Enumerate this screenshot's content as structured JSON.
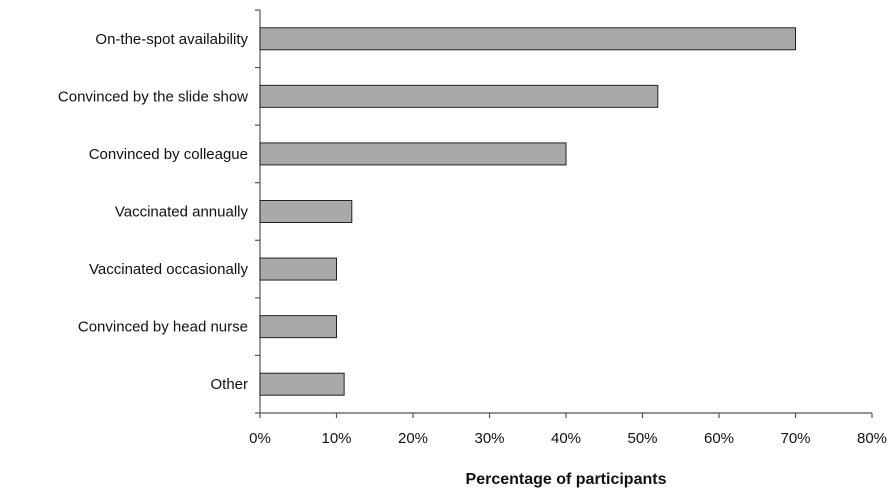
{
  "chart_data": {
    "type": "bar",
    "orientation": "horizontal",
    "categories": [
      "On-the-spot availability",
      "Convinced by the slide show",
      "Convinced by colleague",
      "Vaccinated annually",
      "Vaccinated occasionally",
      "Convinced by head nurse",
      "Other"
    ],
    "values": [
      70,
      52,
      40,
      12,
      10,
      10,
      11
    ],
    "value_unit": "%",
    "xlabel": "Percentage of participants",
    "ylabel": "",
    "xlim": [
      0,
      80
    ],
    "x_ticks": [
      "0%",
      "10%",
      "20%",
      "30%",
      "40%",
      "50%",
      "60%",
      "70%",
      "80%"
    ],
    "grid": false,
    "legend": "none",
    "bar_color": "#a9a9a9"
  }
}
